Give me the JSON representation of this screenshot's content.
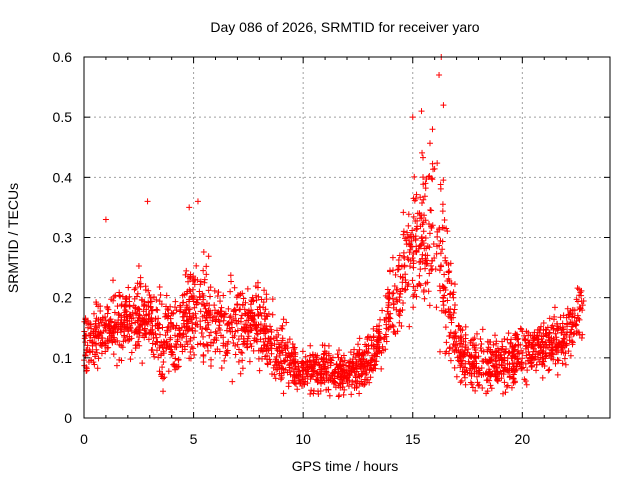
{
  "chart_data": {
    "type": "scatter",
    "title": "Day 086 of 2026, SRMTID for receiver yaro",
    "xlabel": "GPS time / hours",
    "ylabel": "SRMTID / TECUs",
    "xlim": [
      0,
      24
    ],
    "ylim": [
      0,
      0.6
    ],
    "x_ticks": [
      0,
      5,
      10,
      15,
      20
    ],
    "x_tick_labels": [
      "0",
      "5",
      "10",
      "15",
      "20"
    ],
    "y_ticks": [
      0,
      0.1,
      0.2,
      0.3,
      0.4,
      0.5,
      0.6
    ],
    "y_tick_labels": [
      "0",
      "0.1",
      "0.2",
      "0.3",
      "0.4",
      "0.5",
      "0.6"
    ],
    "grid": true,
    "legend": "none",
    "marker": "plus",
    "marker_color": "#ff0000",
    "approx_trend": {
      "x": [
        0,
        1,
        2,
        3,
        4,
        5,
        6,
        7,
        8,
        8.7,
        9.5,
        10,
        11,
        12,
        12.8,
        13.5,
        14.2,
        14.8,
        15.3,
        15.8,
        16.2,
        16.6,
        17,
        17.5,
        18,
        19,
        20,
        21,
        22,
        22.8
      ],
      "y": [
        0.12,
        0.14,
        0.17,
        0.16,
        0.12,
        0.19,
        0.16,
        0.15,
        0.16,
        0.12,
        0.085,
        0.08,
        0.08,
        0.075,
        0.09,
        0.13,
        0.2,
        0.26,
        0.3,
        0.32,
        0.3,
        0.2,
        0.12,
        0.1,
        0.09,
        0.085,
        0.11,
        0.12,
        0.13,
        0.18
      ]
    },
    "approx_spread": {
      "x": [
        0,
        4.5,
        5.5,
        8.7,
        9.5,
        13,
        14.5,
        15.5,
        16.3,
        17,
        23
      ],
      "y": [
        0.04,
        0.06,
        0.07,
        0.05,
        0.03,
        0.03,
        0.07,
        0.12,
        0.12,
        0.04,
        0.04
      ]
    },
    "spikes": [
      {
        "x": 15.0,
        "y": 0.5
      },
      {
        "x": 15.4,
        "y": 0.51
      },
      {
        "x": 15.9,
        "y": 0.48
      },
      {
        "x": 16.3,
        "y": 0.6
      },
      {
        "x": 16.2,
        "y": 0.57
      },
      {
        "x": 16.4,
        "y": 0.52
      },
      {
        "x": 1.0,
        "y": 0.33
      },
      {
        "x": 2.9,
        "y": 0.36
      },
      {
        "x": 5.2,
        "y": 0.36
      },
      {
        "x": 4.8,
        "y": 0.35
      }
    ],
    "point_count_estimate": 2400
  }
}
